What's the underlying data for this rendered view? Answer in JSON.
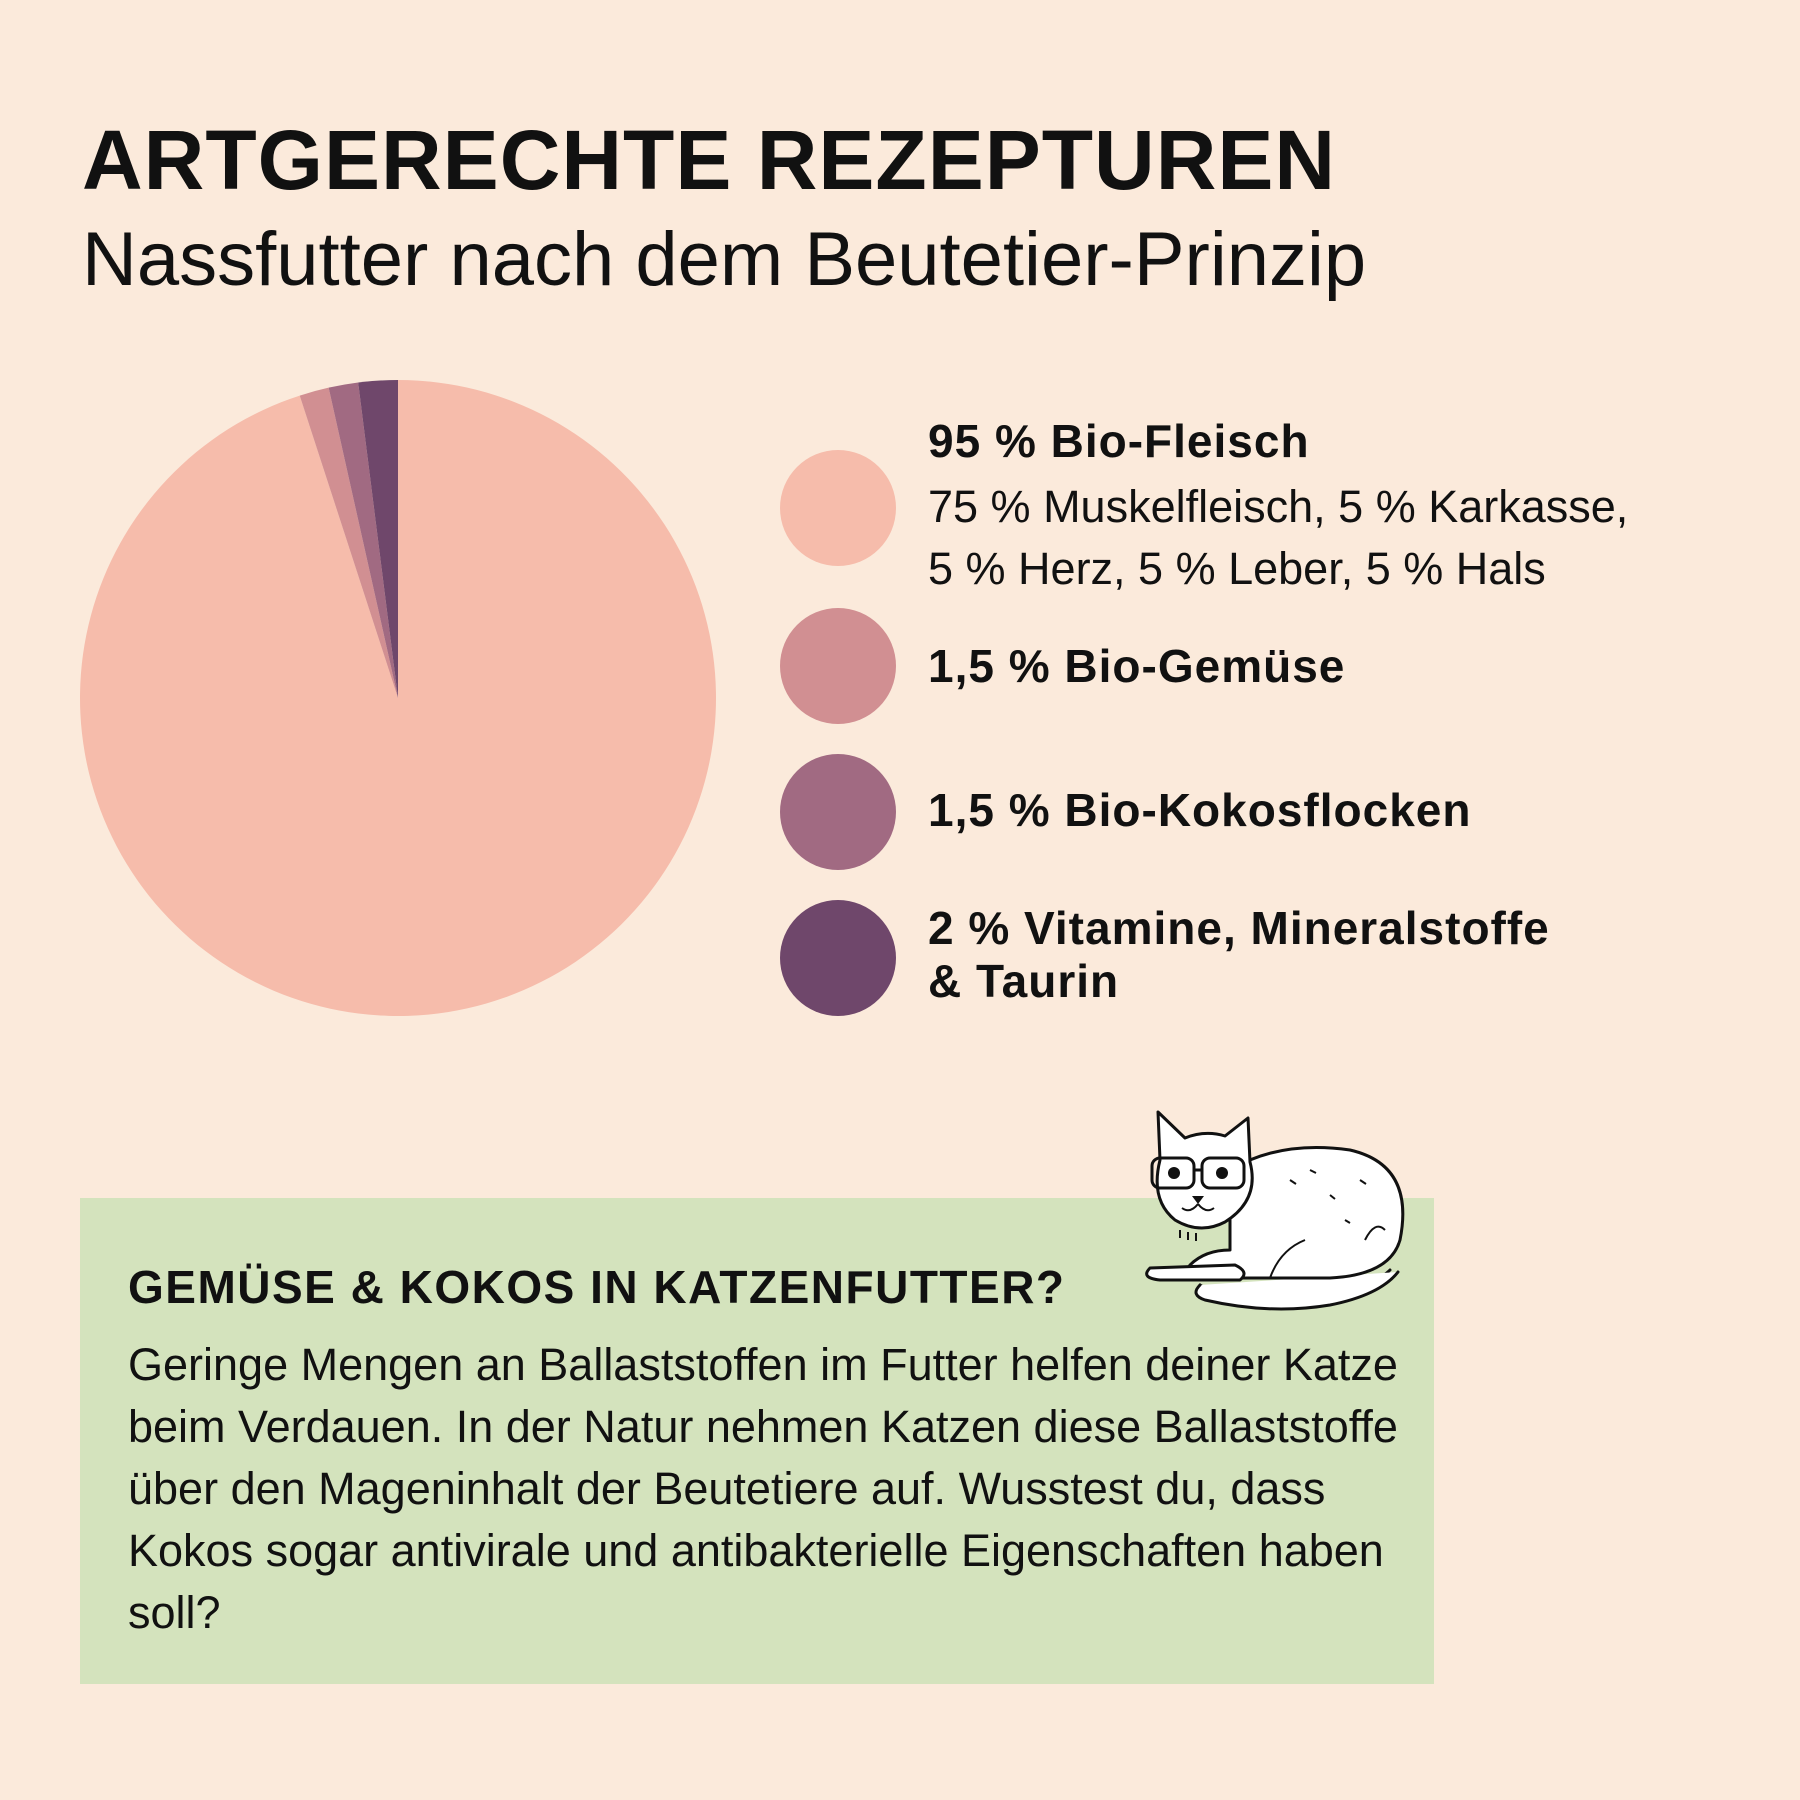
{
  "header": {
    "title": "ARTGERECHTE REZEPTUREN",
    "subtitle": "Nassfutter nach dem Beutetier-Prinzip"
  },
  "chart_data": {
    "type": "pie",
    "slices": [
      {
        "label": "95 % Bio-Fleisch",
        "value": 95,
        "color": "#f6bcab"
      },
      {
        "label": "1,5 % Bio-Gemüse",
        "value": 1.5,
        "color": "#d18f92"
      },
      {
        "label": "1,5 % Bio-Kokosflocken",
        "value": 1.5,
        "color": "#a16a82"
      },
      {
        "label": "2 % Vitamine, Mineralstoffe & Taurin",
        "value": 2,
        "color": "#6f476b"
      }
    ],
    "start_angle_deg": 0,
    "direction": "clockwise"
  },
  "legend": {
    "items": [
      {
        "label": "95 % Bio-Fleisch",
        "detail_line1": "75 % Muskelfleisch, 5 % Karkasse,",
        "detail_line2": "5 % Herz, 5 % Leber, 5 % Hals"
      },
      {
        "label": "1,5 % Bio-Gemüse"
      },
      {
        "label": "1,5 % Bio-Kokosflocken"
      },
      {
        "label_line1": "2 % Vitamine, Mineralstoffe",
        "label_line2": "& Taurin"
      }
    ]
  },
  "info": {
    "heading": "GEMÜSE & KOKOS IN KATZENFUTTER?",
    "body": "Geringe Mengen an Ballaststoffen im Futter helfen deiner Katze beim Verdauen. In der Natur nehmen Katzen diese Ballaststoffe über den Mageninhalt der Beutetiere auf. Wusstest du, dass Kokos sogar antivirale und antibakterielle Eigenschaften haben soll?"
  },
  "illustration": {
    "icon": "cat-with-glasses-icon"
  }
}
